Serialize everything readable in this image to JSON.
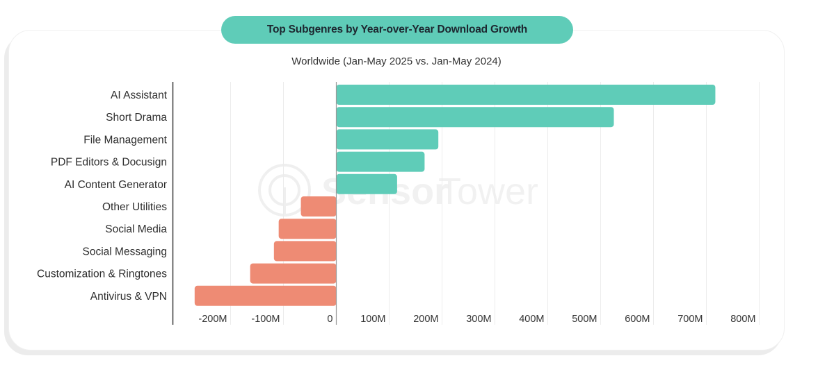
{
  "colors": {
    "positive": "#5fccb8",
    "negative": "#ee8b74",
    "title_pill": "#5fccb8",
    "gridline": "#ececec",
    "axis": "#444444"
  },
  "watermark": {
    "bold": "Sensor",
    "light": "Tower"
  },
  "chart_data": {
    "type": "bar",
    "orientation": "horizontal",
    "title": "Top Subgenres by Year-over-Year Download Growth",
    "subtitle": "Worldwide (Jan-May 2025 vs. Jan-May 2024)",
    "xlabel": "",
    "ylabel": "",
    "unit": "M",
    "categories": [
      "AI Assistant",
      "Short Drama",
      "File Management",
      "PDF Editors & Docusign",
      "AI Content Generator",
      "Other Utilities",
      "Social Media",
      "Social Messaging",
      "Customization & Ringtones",
      "Antivirus & VPN"
    ],
    "values": [
      717,
      525,
      193,
      167,
      115,
      -67,
      -109,
      -118,
      -163,
      -268
    ],
    "xlim": [
      -310,
      810
    ],
    "xticks": [
      -200,
      -100,
      0,
      100,
      200,
      300,
      400,
      500,
      600,
      700,
      800
    ],
    "xtick_labels": [
      "-200M",
      "-100M",
      "0",
      "100M",
      "200M",
      "300M",
      "400M",
      "500M",
      "600M",
      "700M",
      "800M"
    ],
    "grid": "vertical",
    "legend": "none"
  }
}
